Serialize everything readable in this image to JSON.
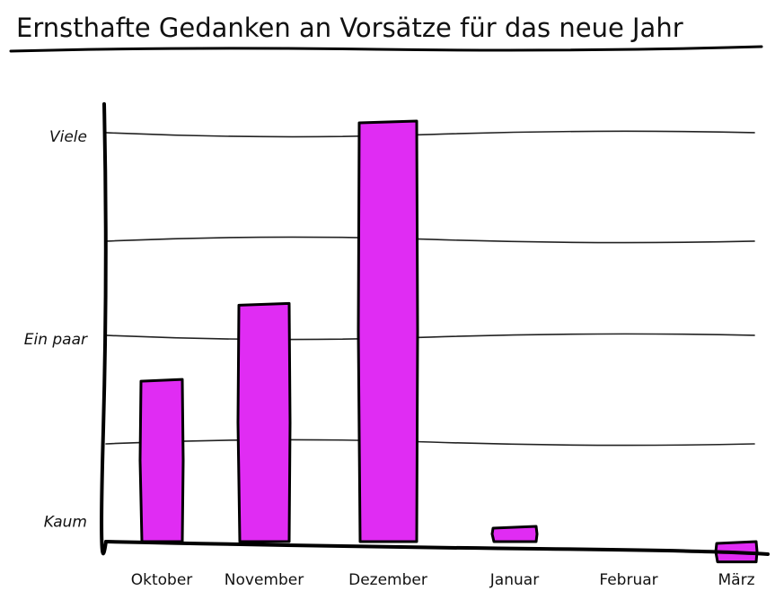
{
  "chart_data": {
    "type": "bar",
    "title": "Ernsthafte Gedanken an Vorsätze für das neue Jahr",
    "xlabel": "",
    "ylabel": "",
    "categories": [
      "Oktober",
      "November",
      "Dezember",
      "Januar",
      "Februar",
      "März"
    ],
    "values": [
      3.2,
      4.7,
      8.3,
      0.3,
      0,
      -0.4
    ],
    "ylim": [
      -0.5,
      8.3
    ],
    "y_tick_labels": [
      {
        "value": 0.4,
        "label": "Kaum"
      },
      {
        "value": 4.0,
        "label": "Ein paar"
      },
      {
        "value": 8.0,
        "label": "Viele"
      }
    ],
    "grid": true,
    "bar_color": "#e02cf3",
    "style": "hand-drawn"
  }
}
